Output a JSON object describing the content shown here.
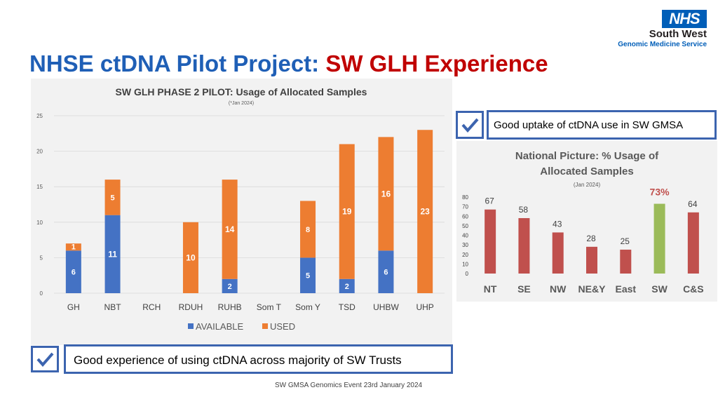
{
  "header": {
    "logo_text": "NHS",
    "region": "South West",
    "service": "Genomic Medicine Service"
  },
  "title": {
    "part1": "NHSE ctDNA Pilot Project:",
    "part2": "SW GLH Experience"
  },
  "callouts": {
    "top": "Good uptake of ctDNA use in SW GMSA",
    "bottom": "Good experience of using ctDNA across majority of SW Trusts"
  },
  "footer": "SW GMSA Genomics Event 23rd January 2024",
  "colors": {
    "title_blue": "#1F5FB6",
    "title_red": "#C00000",
    "available": "#4472C4",
    "used": "#ED7D31",
    "bar_red": "#C0504D",
    "bar_green": "#9BBB59",
    "callout_border": "#3C64AF"
  },
  "chart_data": [
    {
      "type": "bar",
      "stacked": true,
      "title": "SW GLH PHASE 2 PILOT: Usage of Allocated Samples",
      "subtitle": "(*Jan 2024)",
      "categories": [
        "GH",
        "NBT",
        "RCH",
        "RDUH",
        "RUHB",
        "Som T",
        "Som Y",
        "TSD",
        "UHBW",
        "UHP"
      ],
      "series": [
        {
          "name": "AVAILABLE",
          "values": [
            6,
            11,
            0,
            0,
            2,
            0,
            5,
            2,
            6,
            0
          ]
        },
        {
          "name": "USED",
          "values": [
            1,
            5,
            0,
            10,
            14,
            0,
            8,
            19,
            16,
            23
          ]
        }
      ],
      "labels": [
        [
          "6",
          "1"
        ],
        [
          "11",
          "5"
        ],
        [
          "",
          ""
        ],
        [
          "",
          "10"
        ],
        [
          "2",
          "14"
        ],
        [
          "",
          ""
        ],
        [
          "5",
          "8"
        ],
        [
          "2",
          "19"
        ],
        [
          "6",
          "16"
        ],
        [
          "",
          "23"
        ]
      ],
      "ylim": [
        0,
        25
      ],
      "yticks": [
        0,
        5,
        10,
        15,
        20,
        25
      ],
      "legend": "bottom",
      "grid": true
    },
    {
      "type": "bar",
      "title_line1": "National Picture: % Usage of",
      "title_line2": "Allocated Samples",
      "subtitle": "(Jan 2024)",
      "categories": [
        "NT",
        "SE",
        "NW",
        "NE&Y",
        "East",
        "SW",
        "C&S"
      ],
      "values": [
        67,
        58,
        43,
        28,
        25,
        73,
        64
      ],
      "value_labels": [
        "67",
        "58",
        "43",
        "28",
        "25",
        "73%",
        "64"
      ],
      "highlight": "SW",
      "ylim": [
        0,
        80
      ],
      "yticks": [
        0,
        10,
        20,
        30,
        40,
        50,
        60,
        70,
        80
      ],
      "grid": false
    }
  ]
}
